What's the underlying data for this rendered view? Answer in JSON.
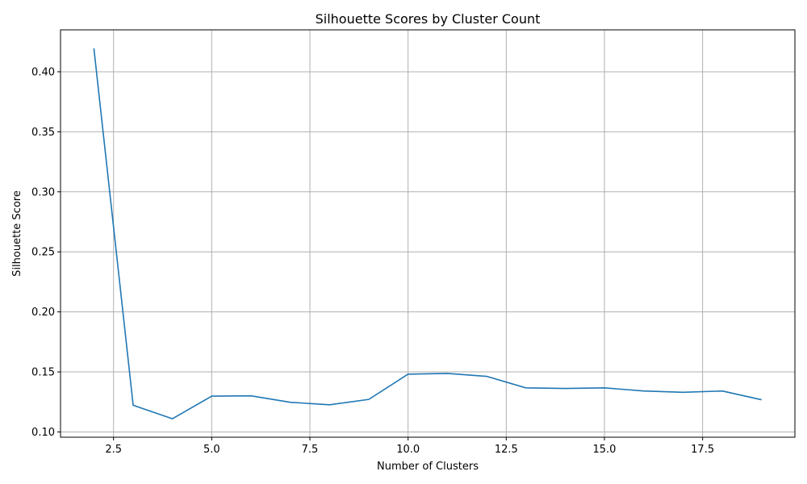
{
  "chart_data": {
    "type": "line",
    "title": "Silhouette Scores by Cluster Count",
    "xlabel": "Number of Clusters",
    "ylabel": "Silhouette Score",
    "x": [
      2,
      3,
      4,
      5,
      6,
      7,
      8,
      9,
      10,
      11,
      12,
      13,
      14,
      15,
      16,
      17,
      18,
      19
    ],
    "series": [
      {
        "values": [
          0.4195,
          0.1222,
          0.111,
          0.1298,
          0.1301,
          0.1247,
          0.1226,
          0.1271,
          0.1481,
          0.1487,
          0.1463,
          0.1367,
          0.1362,
          0.1367,
          0.1341,
          0.133,
          0.1341,
          0.1268
        ],
        "color": "#1f77b4"
      }
    ],
    "xlim": [
      1.15,
      19.85
    ],
    "ylim": [
      0.0956,
      0.4349
    ],
    "xticks": [
      2.5,
      5.0,
      7.5,
      10.0,
      12.5,
      15.0,
      17.5
    ],
    "xtick_labels": [
      "2.5",
      "5.0",
      "7.5",
      "10.0",
      "12.5",
      "15.0",
      "17.5"
    ],
    "yticks": [
      0.1,
      0.15,
      0.2,
      0.25,
      0.3,
      0.35,
      0.4
    ],
    "ytick_labels": [
      "0.10",
      "0.15",
      "0.20",
      "0.25",
      "0.30",
      "0.35",
      "0.40"
    ],
    "grid": true,
    "grid_color": "#b0b0b0"
  }
}
